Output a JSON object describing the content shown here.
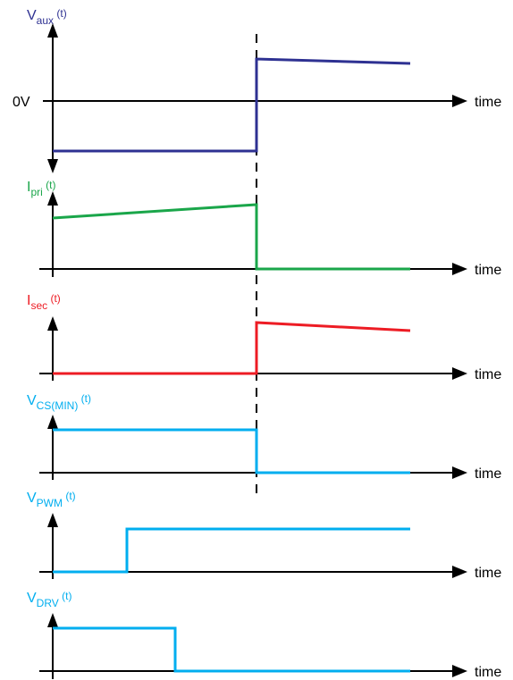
{
  "colors": {
    "v_aux": "#2e3192",
    "i_pri": "#1aa64a",
    "i_sec": "#ed1c24",
    "v_cs_min": "#00aeef",
    "v_pwm": "#00aeef",
    "v_drv": "#00aeef",
    "axis": "#000000"
  },
  "zero_label": "0V",
  "panels": [
    {
      "id": "v_aux",
      "var": "V",
      "sub": "aux",
      "t_label": " (t)",
      "time_label": "time"
    },
    {
      "id": "i_pri",
      "var": "I",
      "sub": "pri",
      "t_label": " (t)",
      "time_label": "time"
    },
    {
      "id": "i_sec",
      "var": "I",
      "sub": "sec",
      "t_label": " (t)",
      "time_label": "time"
    },
    {
      "id": "v_cs_min",
      "var": "V",
      "sub": "CS(MIN)",
      "t_label": " (t)",
      "time_label": "time"
    },
    {
      "id": "v_pwm",
      "var": "V",
      "sub": "PWM",
      "t_label": " (t)",
      "time_label": "time"
    },
    {
      "id": "v_drv",
      "var": "V",
      "sub": "DRV",
      "t_label": " (t)",
      "time_label": "time"
    }
  ]
}
